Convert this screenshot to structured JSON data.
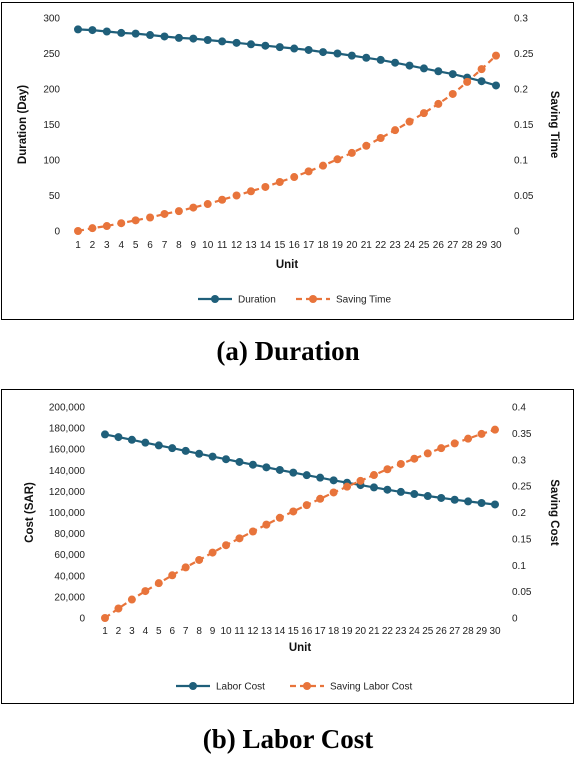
{
  "figure": {
    "caption_a": "(a) Duration",
    "caption_b": "(b) Labor Cost"
  },
  "colors": {
    "primary": "#1f5f7a",
    "secondary": "#e8743b"
  },
  "chart_data": [
    {
      "type": "line",
      "x": [
        1,
        2,
        3,
        4,
        5,
        6,
        7,
        8,
        9,
        10,
        11,
        12,
        13,
        14,
        15,
        16,
        17,
        18,
        19,
        20,
        21,
        22,
        23,
        24,
        25,
        26,
        27,
        28,
        29,
        30
      ],
      "xlabel": "Unit",
      "ylabel": "Duration (Day)",
      "y2label": "Saving Time",
      "ylim": [
        0,
        300
      ],
      "yticks": [
        0,
        50,
        100,
        150,
        200,
        250,
        300
      ],
      "ytick_labels": [
        "0",
        "50",
        "100",
        "150",
        "200",
        "250",
        "300"
      ],
      "y2lim": [
        0,
        0.3
      ],
      "y2ticks": [
        0,
        0.05,
        0.1,
        0.15,
        0.2,
        0.25,
        0.3
      ],
      "y2tick_labels": [
        "0",
        "0.05",
        "0.1",
        "0.15",
        "0.2",
        "0.25",
        "0.3"
      ],
      "grid": false,
      "legend_position": "bottom",
      "series": [
        {
          "name": "Duration",
          "axis": "left",
          "style": "solid",
          "color": "#1f5f7a",
          "values": [
            284,
            283,
            281,
            279,
            278,
            276,
            274,
            272,
            271,
            269,
            267,
            265,
            263,
            261,
            259,
            257,
            255,
            252,
            250,
            247,
            244,
            241,
            237,
            233,
            229,
            225,
            221,
            216,
            211,
            205
          ]
        },
        {
          "name": "Saving Time",
          "axis": "right",
          "style": "dashed",
          "color": "#e8743b",
          "values": [
            0,
            0.004,
            0.007,
            0.011,
            0.015,
            0.019,
            0.024,
            0.028,
            0.033,
            0.038,
            0.044,
            0.05,
            0.056,
            0.062,
            0.069,
            0.076,
            0.084,
            0.092,
            0.101,
            0.11,
            0.12,
            0.131,
            0.142,
            0.154,
            0.166,
            0.179,
            0.193,
            0.21,
            0.228,
            0.247
          ]
        }
      ]
    },
    {
      "type": "line",
      "x": [
        1,
        2,
        3,
        4,
        5,
        6,
        7,
        8,
        9,
        10,
        11,
        12,
        13,
        14,
        15,
        16,
        17,
        18,
        19,
        20,
        21,
        22,
        23,
        24,
        25,
        26,
        27,
        28,
        29,
        30
      ],
      "xlabel": "Unit",
      "ylabel": "Cost (SAR)",
      "y2label": "Saving Cost",
      "ylim": [
        0,
        200000
      ],
      "yticks": [
        0,
        20000,
        40000,
        60000,
        80000,
        100000,
        120000,
        140000,
        160000,
        180000,
        200000
      ],
      "ytick_labels": [
        "0",
        "20,000",
        "40,000",
        "60,000",
        "80,000",
        "100,000",
        "120,000",
        "140,000",
        "160,000",
        "180,000",
        "200,000"
      ],
      "y2lim": [
        0,
        0.4
      ],
      "y2ticks": [
        0,
        0.05,
        0.1,
        0.15,
        0.2,
        0.25,
        0.3,
        0.35,
        0.4
      ],
      "y2tick_labels": [
        "0",
        "0.05",
        "0.1",
        "0.15",
        "0.2",
        "0.25",
        "0.3",
        "0.35",
        "0.4"
      ],
      "grid": false,
      "legend_position": "bottom",
      "series": [
        {
          "name": "Labor Cost",
          "axis": "left",
          "style": "solid",
          "color": "#1f5f7a",
          "values": [
            174000,
            171500,
            168900,
            166200,
            163600,
            161000,
            158400,
            155700,
            153000,
            150500,
            147900,
            145300,
            142800,
            140300,
            137800,
            135400,
            133000,
            130500,
            128200,
            126000,
            123800,
            121600,
            119500,
            117500,
            115600,
            113800,
            112100,
            110500,
            109000,
            107600
          ]
        },
        {
          "name": "Saving Labor Cost",
          "axis": "right",
          "style": "dashed",
          "color": "#e8743b",
          "values": [
            0,
            0.018,
            0.035,
            0.051,
            0.066,
            0.081,
            0.096,
            0.11,
            0.124,
            0.138,
            0.151,
            0.164,
            0.177,
            0.19,
            0.202,
            0.214,
            0.226,
            0.238,
            0.249,
            0.26,
            0.271,
            0.282,
            0.292,
            0.302,
            0.312,
            0.322,
            0.331,
            0.34,
            0.349,
            0.357
          ]
        }
      ]
    }
  ]
}
